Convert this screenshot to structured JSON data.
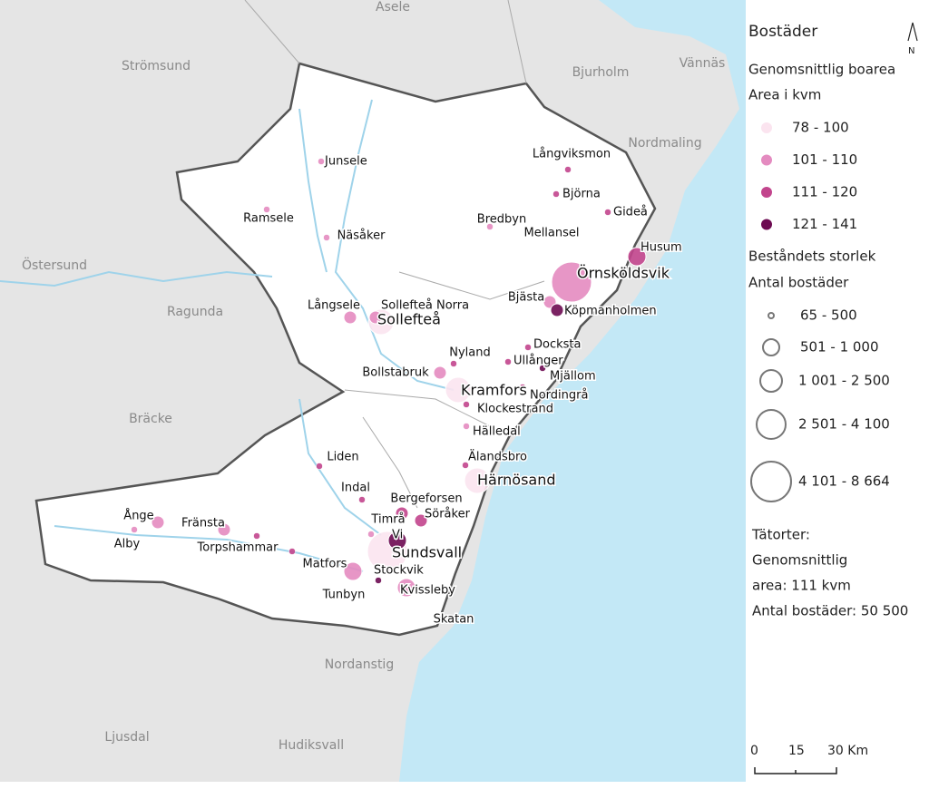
{
  "background_places": [
    "Asele",
    "Strömsund",
    "Bjurholm",
    "Vännäs",
    "Nordmaling",
    "Östersund",
    "Ragunda",
    "Bräcke",
    "Nordanstig",
    "Ljusdal",
    "Hudiksvall"
  ],
  "legend": {
    "title": "Bostäder",
    "area_title": "Genomsnittlig boarea",
    "area_unit": "Area i kvm",
    "area_classes": [
      {
        "label": "78 - 100",
        "color": "#fbe4ef"
      },
      {
        "label": "101 - 110",
        "color": "#e48bc0"
      },
      {
        "label": "111 - 120",
        "color": "#c2458d"
      },
      {
        "label": "121 - 141",
        "color": "#6d0b52"
      }
    ],
    "size_title": "Beståndets storlek",
    "size_unit": "Antal bostäder",
    "size_classes": [
      "65 - 500",
      "501 - 1 000",
      "1 001 - 2 500",
      "2 501 - 4 100",
      "4 101 - 8 664"
    ],
    "notes": [
      "Tätorter:",
      "Genomsnittlig",
      "area: 111 kvm",
      "Antal bostäder: 50 500"
    ],
    "north": "N",
    "scale": [
      "0",
      "15",
      "30 Km"
    ]
  },
  "settlements": [
    {
      "name": "Junsele",
      "area": "101 - 110",
      "count": "65 - 500"
    },
    {
      "name": "Ramsele",
      "area": "101 - 110",
      "count": "65 - 500"
    },
    {
      "name": "Näsåker",
      "area": "101 - 110",
      "count": "65 - 500"
    },
    {
      "name": "Långviksmon",
      "area": "111 - 120",
      "count": "65 - 500"
    },
    {
      "name": "Björna",
      "area": "111 - 120",
      "count": "65 - 500"
    },
    {
      "name": "Gideå",
      "area": "111 - 120",
      "count": "65 - 500"
    },
    {
      "name": "Bredbyn",
      "area": "101 - 110",
      "count": "65 - 500"
    },
    {
      "name": "Mellansel",
      "area": "121 - 141",
      "count": "65 - 500"
    },
    {
      "name": "Husum",
      "area": "111 - 120",
      "count": "1 001 - 2 500"
    },
    {
      "name": "Örnsköldsvik",
      "area": "101 - 110",
      "count": "4 101 - 8 664"
    },
    {
      "name": "Bjästa",
      "area": "101 - 110",
      "count": "501 - 1 000"
    },
    {
      "name": "Köpmanholmen",
      "area": "121 - 141",
      "count": "501 - 1 000"
    },
    {
      "name": "Långsele",
      "area": "101 - 110",
      "count": "501 - 1 000"
    },
    {
      "name": "Sollefteå Norra",
      "area": "101 - 110",
      "count": "501 - 1 000"
    },
    {
      "name": "Sollefteå",
      "area": "78 - 100",
      "count": "2 501 - 4 100"
    },
    {
      "name": "Docksta",
      "area": "111 - 120",
      "count": "65 - 500"
    },
    {
      "name": "Nyland",
      "area": "111 - 120",
      "count": "65 - 500"
    },
    {
      "name": "Ullånger",
      "area": "111 - 120",
      "count": "65 - 500"
    },
    {
      "name": "Mjällom",
      "area": "121 - 141",
      "count": "65 - 500"
    },
    {
      "name": "Bollstabruk",
      "area": "101 - 110",
      "count": "501 - 1 000"
    },
    {
      "name": "Kramfors",
      "area": "78 - 100",
      "count": "2 501 - 4 100"
    },
    {
      "name": "Nordingrå",
      "area": "111 - 120",
      "count": "65 - 500"
    },
    {
      "name": "Klockestrand",
      "area": "111 - 120",
      "count": "65 - 500"
    },
    {
      "name": "Hälledal",
      "area": "101 - 110",
      "count": "65 - 500"
    },
    {
      "name": "Älandsbro",
      "area": "111 - 120",
      "count": "65 - 500"
    },
    {
      "name": "Härnösand",
      "area": "78 - 100",
      "count": "2 501 - 4 100"
    },
    {
      "name": "Liden",
      "area": "111 - 120",
      "count": "65 - 500"
    },
    {
      "name": "Indal",
      "area": "111 - 120",
      "count": "65 - 500"
    },
    {
      "name": "Bergeforsen",
      "area": "111 - 120",
      "count": "501 - 1 000"
    },
    {
      "name": "Söråker",
      "area": "111 - 120",
      "count": "501 - 1 000"
    },
    {
      "name": "Timrå",
      "area": "101 - 110",
      "count": "65 - 500"
    },
    {
      "name": "Vi",
      "area": "121 - 141",
      "count": "1 001 - 2 500"
    },
    {
      "name": "Sundsvall",
      "area": "78 - 100",
      "count": "4 101 - 8 664"
    },
    {
      "name": "Ånge",
      "area": "101 - 110",
      "count": "501 - 1 000"
    },
    {
      "name": "Alby",
      "area": "101 - 110",
      "count": "65 - 500"
    },
    {
      "name": "Fränsta",
      "area": "101 - 110",
      "count": "501 - 1 000"
    },
    {
      "name": "Torpshammar",
      "area": "111 - 120",
      "count": "65 - 500"
    },
    {
      "name": "Matfors",
      "area": "111 - 120",
      "count": "65 - 500"
    },
    {
      "name": "Stockvik",
      "area": "121 - 141",
      "count": "65 - 500"
    },
    {
      "name": "Tunbyn",
      "area": "101 - 110",
      "count": "1 001 - 2 500"
    },
    {
      "name": "Kvissleby",
      "area": "101 - 110",
      "count": "1 001 - 2 500"
    },
    {
      "name": "Skatan"
    }
  ]
}
